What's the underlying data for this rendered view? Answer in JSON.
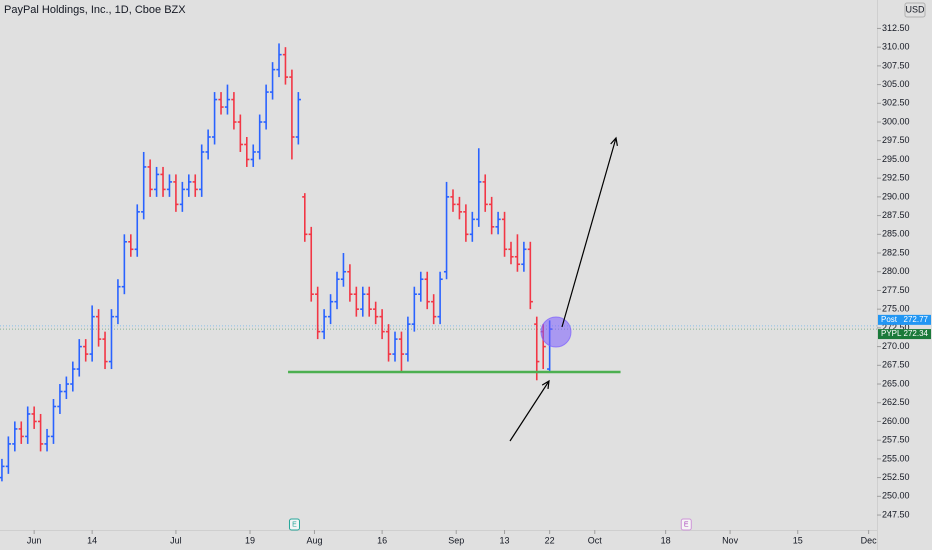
{
  "chart_data": {
    "type": "ohlc",
    "title": "PayPal Holdings, Inc., 1D, Cboe BZX",
    "currency": "USD",
    "up_color": "#2962ff",
    "down_color": "#f23645",
    "xlim": [
      -0.3,
      135.8
    ],
    "xticks": [
      {
        "value": 5,
        "label": "Jun"
      },
      {
        "value": 14,
        "label": "14"
      },
      {
        "value": 27,
        "label": "Jul"
      },
      {
        "value": 38.5,
        "label": "19"
      },
      {
        "value": 48.5,
        "label": "Aug"
      },
      {
        "value": 59,
        "label": "16"
      },
      {
        "value": 70.5,
        "label": "Sep"
      },
      {
        "value": 78,
        "label": "13"
      },
      {
        "value": 85,
        "label": "22"
      },
      {
        "value": 92,
        "label": "Oct"
      },
      {
        "value": 103,
        "label": "18"
      },
      {
        "value": 113,
        "label": "Nov"
      },
      {
        "value": 123.5,
        "label": "15"
      },
      {
        "value": 134.5,
        "label": "Dec"
      }
    ],
    "ylim": [
      245.5,
      316.3
    ],
    "yticks": [
      {
        "value": 247.5,
        "label": "247.50"
      },
      {
        "value": 250,
        "label": "250.00"
      },
      {
        "value": 252.5,
        "label": "252.50"
      },
      {
        "value": 255,
        "label": "255.00"
      },
      {
        "value": 257.5,
        "label": "257.50"
      },
      {
        "value": 260,
        "label": "260.00"
      },
      {
        "value": 262.5,
        "label": "262.50"
      },
      {
        "value": 265,
        "label": "265.00"
      },
      {
        "value": 267.5,
        "label": "267.50"
      },
      {
        "value": 270,
        "label": "270.00"
      },
      {
        "value": 272.5,
        "label": "272.50"
      },
      {
        "value": 275,
        "label": "275.00"
      },
      {
        "value": 277.5,
        "label": "277.50"
      },
      {
        "value": 280,
        "label": "280.00"
      },
      {
        "value": 282.5,
        "label": "282.50"
      },
      {
        "value": 285,
        "label": "285.00"
      },
      {
        "value": 287.5,
        "label": "287.50"
      },
      {
        "value": 290,
        "label": "290.00"
      },
      {
        "value": 292.5,
        "label": "292.50"
      },
      {
        "value": 295,
        "label": "295.00"
      },
      {
        "value": 297.5,
        "label": "297.50"
      },
      {
        "value": 300,
        "label": "300.00"
      },
      {
        "value": 302.5,
        "label": "302.50"
      },
      {
        "value": 305,
        "label": "305.00"
      },
      {
        "value": 307.5,
        "label": "307.50"
      },
      {
        "value": 310,
        "label": "310.00"
      },
      {
        "value": 312.5,
        "label": "312.50"
      }
    ],
    "opens": [
      252.5,
      254,
      257,
      259,
      258,
      261,
      260,
      257,
      258,
      262,
      264,
      265,
      267,
      270,
      269,
      274,
      271,
      268,
      274,
      278,
      284,
      283,
      288,
      294,
      291,
      293,
      291,
      292,
      289,
      291,
      292,
      291,
      296,
      298,
      303,
      302,
      303,
      300,
      297,
      295,
      296,
      300,
      304,
      307,
      309,
      306,
      298,
      290,
      285,
      277,
      272,
      274,
      276,
      279,
      280,
      277,
      275,
      277,
      275,
      274,
      272,
      269,
      271,
      269,
      273,
      277,
      279,
      276,
      274,
      280,
      290,
      289,
      288,
      285,
      287,
      292,
      289,
      286,
      287,
      283,
      282,
      281,
      283,
      273,
      272,
      267
    ],
    "highs": [
      255,
      258,
      260,
      260,
      262,
      262,
      261,
      259,
      263,
      265,
      266,
      268,
      271,
      271,
      275.5,
      275,
      272,
      275,
      279,
      285,
      285,
      289,
      296,
      295,
      294,
      294,
      293,
      293,
      292,
      293,
      293,
      297,
      299,
      304,
      304,
      305,
      304,
      301,
      298,
      297,
      301,
      305,
      308,
      310.5,
      310,
      307,
      304,
      290.5,
      286,
      278,
      275,
      277,
      280,
      282.5,
      281,
      278,
      278,
      278,
      276,
      275,
      273,
      272,
      272,
      274,
      278,
      280,
      280,
      277,
      280,
      292,
      291,
      290,
      289,
      288,
      296.5,
      293,
      290,
      288,
      288,
      284,
      285,
      284,
      284,
      274,
      273,
      273.5
    ],
    "lows": [
      252,
      253,
      256,
      257,
      257,
      259,
      256,
      256,
      257,
      261,
      263,
      264,
      266,
      268,
      268,
      270,
      267,
      267,
      273,
      277,
      282,
      282,
      287,
      290,
      290,
      290,
      290,
      288,
      288,
      290,
      290,
      290,
      295,
      297,
      301,
      301,
      299,
      296,
      294,
      294,
      295,
      299,
      303,
      306,
      305,
      295,
      297,
      284,
      276,
      271,
      271,
      273,
      275,
      278,
      276,
      274,
      274,
      274,
      273,
      271,
      268,
      268,
      266.5,
      268,
      272,
      276,
      275,
      273,
      273,
      279,
      288,
      287,
      284,
      284,
      286,
      288,
      285,
      285,
      282,
      281,
      280,
      280,
      275,
      265.5,
      267,
      266.5
    ],
    "closes": [
      254,
      257,
      259,
      258,
      261,
      260,
      257,
      258,
      262,
      264,
      265,
      267,
      270,
      269,
      274,
      271,
      268,
      274,
      278,
      284,
      283,
      288,
      294,
      291,
      293,
      291,
      292,
      289,
      291,
      292,
      291,
      296,
      298,
      303,
      302,
      303,
      300,
      297,
      295,
      296,
      300,
      304,
      307,
      309,
      306,
      298,
      303,
      285,
      277,
      272,
      274,
      276,
      279,
      280,
      277,
      275,
      277,
      275,
      274,
      272,
      269,
      271,
      269,
      273,
      277,
      279,
      276,
      274,
      279,
      290,
      289,
      288,
      285,
      287,
      292,
      289,
      286,
      287,
      283,
      282,
      281,
      283,
      276,
      268,
      270,
      272.34
    ],
    "price_labels": [
      {
        "name": "Post",
        "value": 272.77,
        "color": "#2196f3"
      },
      {
        "name": "PYPL",
        "value": 272.34,
        "color": "#1b7a3a"
      }
    ],
    "support_line": {
      "value": 266.6,
      "x": [
        44.4,
        96
      ],
      "color": "#4caf50"
    },
    "events": [
      {
        "label": "E",
        "x": 45.4
      },
      {
        "label": "E",
        "x": 106.2
      }
    ]
  }
}
